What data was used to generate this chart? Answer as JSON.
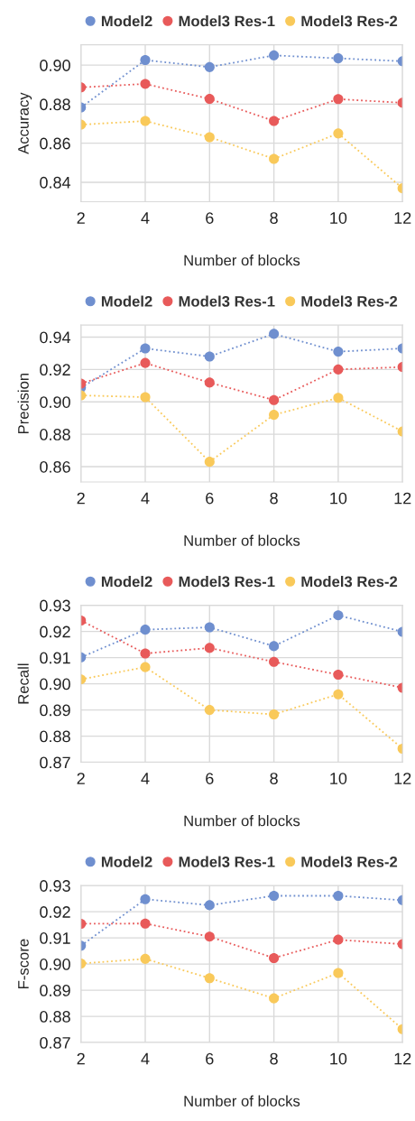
{
  "chart_data": [
    {
      "type": "line",
      "xlabel": "Number of blocks",
      "ylabel": "Accuracy",
      "x": [
        2,
        4,
        6,
        8,
        10,
        12
      ],
      "xlim": [
        2,
        12
      ],
      "xticks": [
        2,
        4,
        6,
        8,
        10,
        12
      ],
      "ylim": [
        0.83,
        0.9104
      ],
      "yticks": [
        {
          "value": 0.84,
          "label": "0.84"
        },
        {
          "value": 0.86,
          "label": "0.86"
        },
        {
          "value": 0.88,
          "label": "0.88"
        },
        {
          "value": 0.9,
          "label": "0.90"
        }
      ],
      "grid": true,
      "legend": "top",
      "marker": "circle",
      "line_style": "dotted",
      "series": [
        {
          "name": "Model2",
          "color": "#6f8fcf",
          "values": [
            0.8783,
            0.9026,
            0.899,
            0.905,
            0.9035,
            0.902
          ]
        },
        {
          "name": "Model3 Res-1",
          "color": "#e85a5a",
          "values": [
            0.8886,
            0.8904,
            0.8827,
            0.8714,
            0.8826,
            0.8807
          ]
        },
        {
          "name": "Model3 Res-2",
          "color": "#f9c95a",
          "values": [
            0.8695,
            0.8714,
            0.8631,
            0.852,
            0.865,
            0.8369
          ]
        }
      ]
    },
    {
      "type": "line",
      "xlabel": "Number of blocks",
      "ylabel": "Precision",
      "x": [
        2,
        4,
        6,
        8,
        10,
        12
      ],
      "xlim": [
        2,
        12
      ],
      "xticks": [
        2,
        4,
        6,
        8,
        10,
        12
      ],
      "ylim": [
        0.8505,
        0.9474
      ],
      "yticks": [
        {
          "value": 0.86,
          "label": "0.86"
        },
        {
          "value": 0.88,
          "label": "0.88"
        },
        {
          "value": 0.9,
          "label": "0.90"
        },
        {
          "value": 0.92,
          "label": "0.92"
        },
        {
          "value": 0.94,
          "label": "0.94"
        }
      ],
      "grid": true,
      "legend": "top",
      "marker": "circle",
      "line_style": "dotted",
      "series": [
        {
          "name": "Model2",
          "color": "#6f8fcf",
          "values": [
            0.9087,
            0.933,
            0.928,
            0.942,
            0.931,
            0.933
          ]
        },
        {
          "name": "Model3 Res-1",
          "color": "#e85a5a",
          "values": [
            0.9113,
            0.924,
            0.9119,
            0.9011,
            0.92,
            0.9215
          ]
        },
        {
          "name": "Model3 Res-2",
          "color": "#f9c95a",
          "values": [
            0.904,
            0.9029,
            0.863,
            0.892,
            0.9025,
            0.8817
          ]
        }
      ]
    },
    {
      "type": "line",
      "xlabel": "Number of blocks",
      "ylabel": "Recall",
      "x": [
        2,
        4,
        6,
        8,
        10,
        12
      ],
      "xlim": [
        2,
        12
      ],
      "xticks": [
        2,
        4,
        6,
        8,
        10,
        12
      ],
      "ylim": [
        0.87,
        0.93
      ],
      "yticks": [
        {
          "value": 0.87,
          "label": "0.87"
        },
        {
          "value": 0.88,
          "label": "0.88"
        },
        {
          "value": 0.89,
          "label": "0.89"
        },
        {
          "value": 0.9,
          "label": "0.90"
        },
        {
          "value": 0.91,
          "label": "0.91"
        },
        {
          "value": 0.92,
          "label": "0.92"
        },
        {
          "value": 0.93,
          "label": "0.93"
        }
      ],
      "grid": true,
      "legend": "top",
      "marker": "circle",
      "line_style": "dotted",
      "series": [
        {
          "name": "Model2",
          "color": "#6f8fcf",
          "values": [
            0.9101,
            0.9207,
            0.9216,
            0.9144,
            0.9262,
            0.9199
          ]
        },
        {
          "name": "Model3 Res-1",
          "color": "#e85a5a",
          "values": [
            0.9242,
            0.9116,
            0.9137,
            0.9084,
            0.9035,
            0.8985
          ]
        },
        {
          "name": "Model3 Res-2",
          "color": "#f9c95a",
          "values": [
            0.9017,
            0.9064,
            0.89,
            0.8883,
            0.896,
            0.8752
          ]
        }
      ]
    },
    {
      "type": "line",
      "xlabel": "Number of blocks",
      "ylabel": "F-score",
      "x": [
        2,
        4,
        6,
        8,
        10,
        12
      ],
      "xlim": [
        2,
        12
      ],
      "xticks": [
        2,
        4,
        6,
        8,
        10,
        12
      ],
      "ylim": [
        0.87,
        0.93
      ],
      "yticks": [
        {
          "value": 0.87,
          "label": "0.87"
        },
        {
          "value": 0.88,
          "label": "0.88"
        },
        {
          "value": 0.89,
          "label": "0.89"
        },
        {
          "value": 0.9,
          "label": "0.90"
        },
        {
          "value": 0.91,
          "label": "0.91"
        },
        {
          "value": 0.92,
          "label": "0.92"
        },
        {
          "value": 0.93,
          "label": "0.93"
        }
      ],
      "grid": true,
      "legend": "top",
      "marker": "circle",
      "line_style": "dotted",
      "series": [
        {
          "name": "Model2",
          "color": "#6f8fcf",
          "values": [
            0.907,
            0.9248,
            0.9225,
            0.9261,
            0.9261,
            0.9244
          ]
        },
        {
          "name": "Model3 Res-1",
          "color": "#e85a5a",
          "values": [
            0.9154,
            0.9155,
            0.9105,
            0.9023,
            0.9093,
            0.9076
          ]
        },
        {
          "name": "Model3 Res-2",
          "color": "#f9c95a",
          "values": [
            0.9002,
            0.902,
            0.8946,
            0.8869,
            0.8966,
            0.8751
          ]
        }
      ]
    }
  ]
}
